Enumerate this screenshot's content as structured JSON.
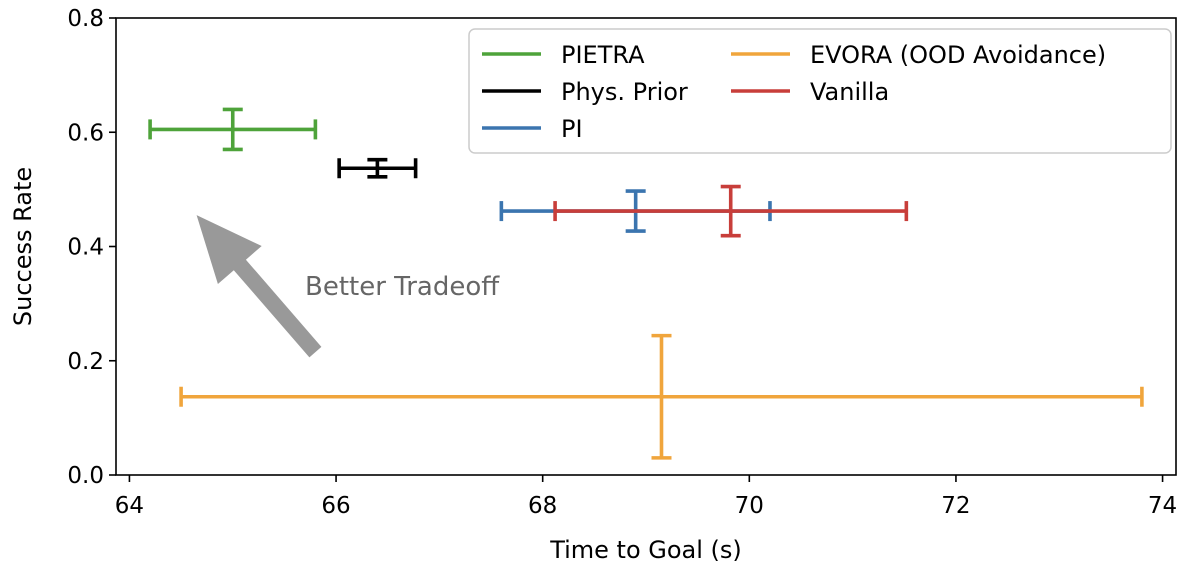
{
  "chart_data": {
    "type": "scatter",
    "title": "",
    "xlabel": "Time to Goal (s)",
    "ylabel": "Success Rate",
    "xlim": [
      63.87,
      74.13
    ],
    "ylim": [
      0.0,
      0.8
    ],
    "xticks": [
      64,
      66,
      68,
      70,
      72,
      74
    ],
    "yticks": [
      0.0,
      0.2,
      0.4,
      0.6,
      0.8
    ],
    "xtick_labels": [
      "64",
      "66",
      "68",
      "70",
      "72",
      "74"
    ],
    "ytick_labels": [
      "0.0",
      "0.2",
      "0.4",
      "0.6",
      "0.8"
    ],
    "grid": false,
    "legend_position": "top-right",
    "series": [
      {
        "name": "PIETRA",
        "color": "#4ea33a",
        "x": 65.0,
        "y": 0.605,
        "xerr": 0.8,
        "yerr": 0.035
      },
      {
        "name": "Phys. Prior",
        "color": "#000000",
        "x": 66.4,
        "y": 0.537,
        "xerr": 0.37,
        "yerr": 0.015
      },
      {
        "name": "PI",
        "color": "#3b75af",
        "x": 68.9,
        "y": 0.462,
        "xerr": 1.3,
        "yerr": 0.035
      },
      {
        "name": "EVORA (OOD Avoidance)",
        "color": "#f0a53c",
        "x": 69.15,
        "y": 0.137,
        "xerr": 4.65,
        "yerr": 0.107
      },
      {
        "name": "Vanilla",
        "color": "#c83e3a",
        "x": 69.82,
        "y": 0.462,
        "xerr": 1.7,
        "yerr": 0.043
      }
    ],
    "legend_order": [
      "PIETRA",
      "Phys. Prior",
      "PI",
      "EVORA (OOD Avoidance)",
      "Vanilla"
    ],
    "annotation": {
      "text": "Better Tradeoff",
      "color": "#999999",
      "text_color": "#666666",
      "arrow_from": [
        65.8,
        0.215
      ],
      "arrow_to": [
        64.65,
        0.455
      ]
    }
  }
}
